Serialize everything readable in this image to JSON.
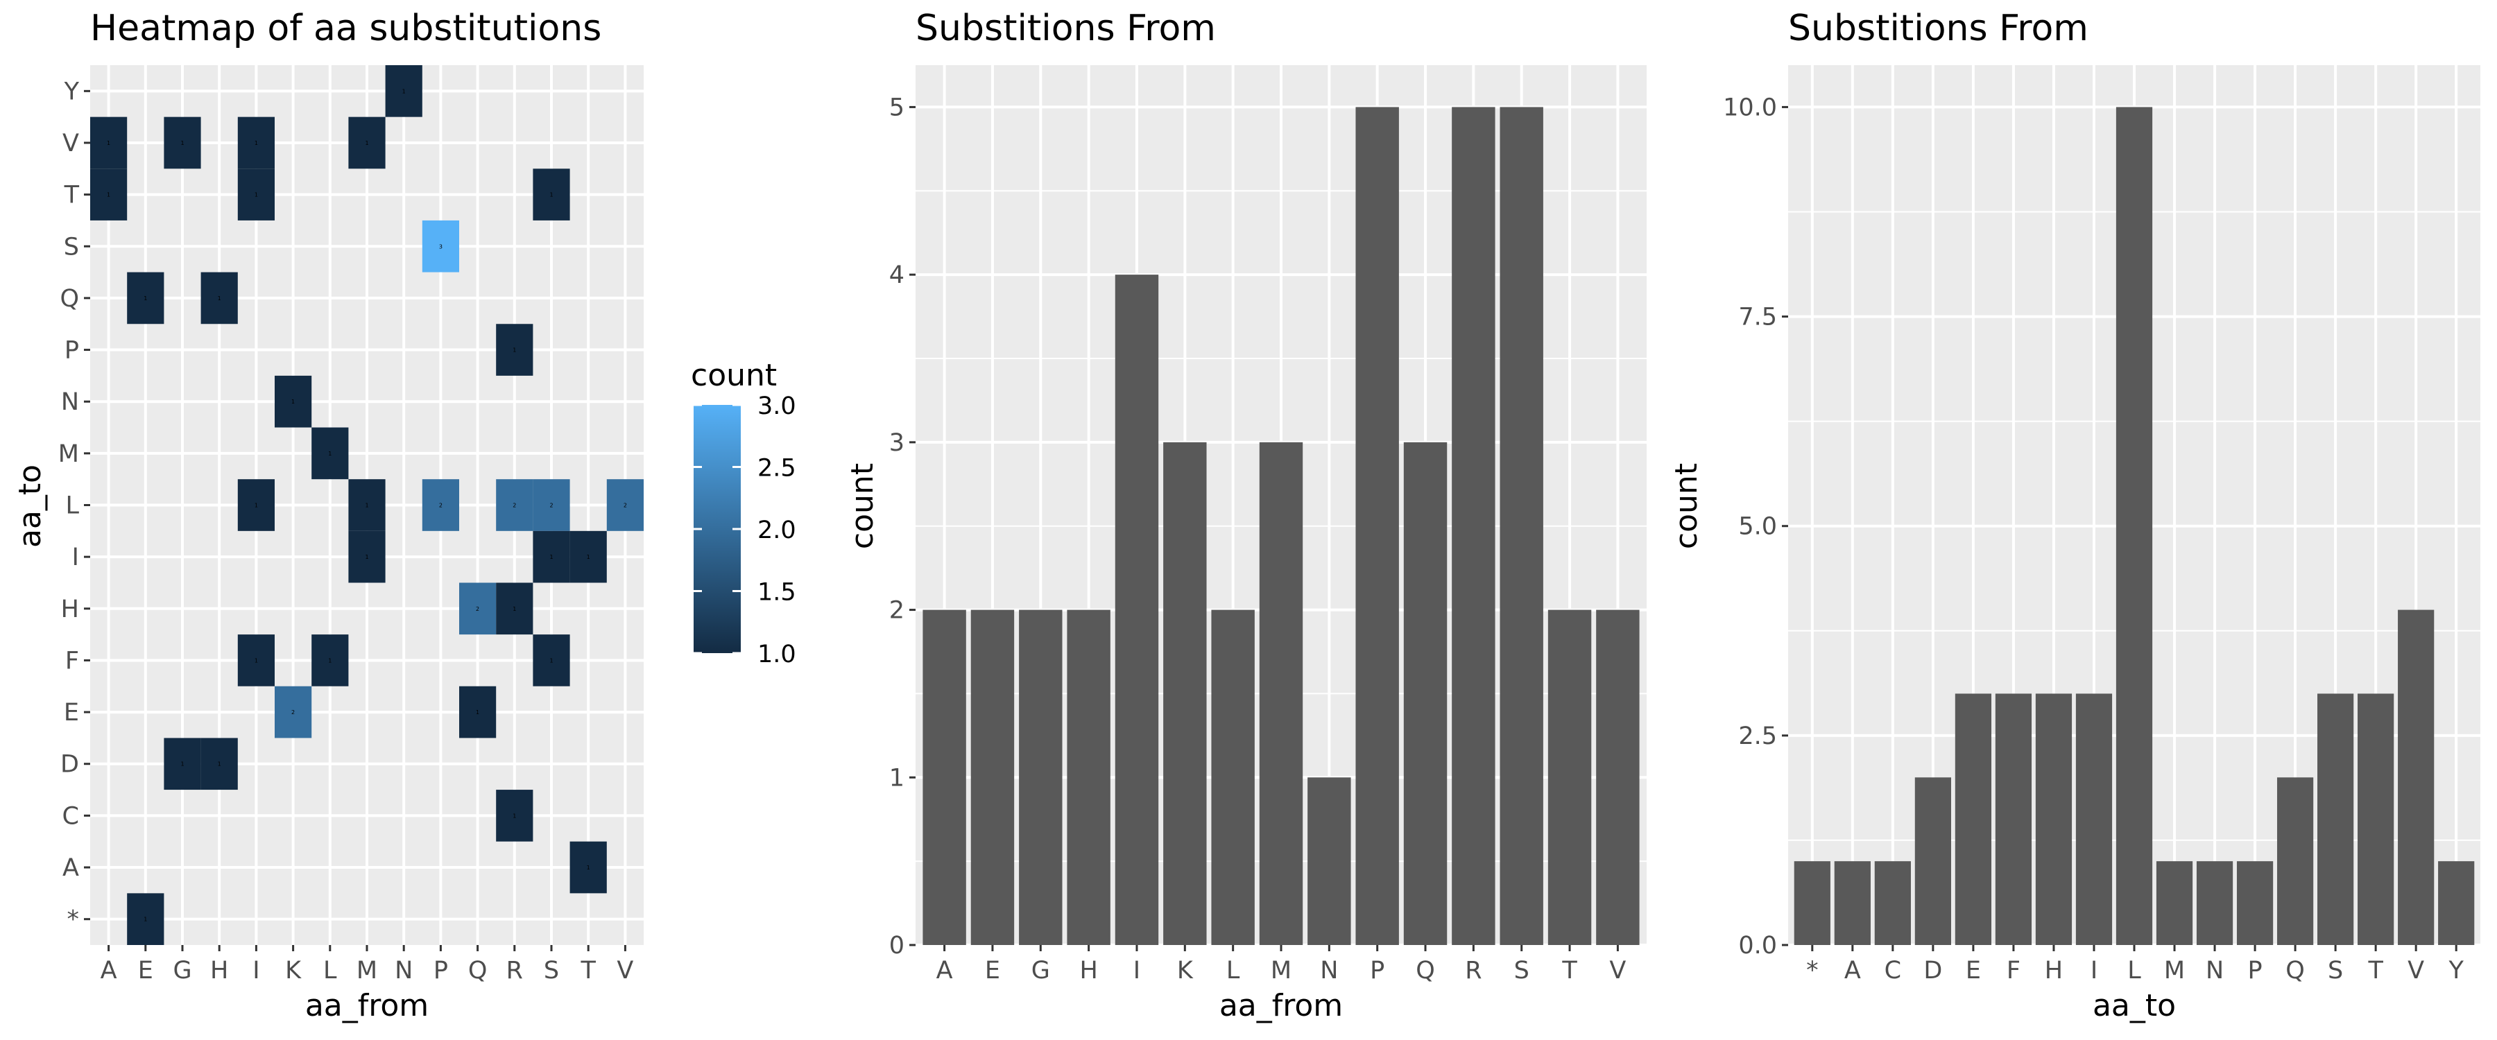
{
  "chart_data": [
    {
      "type": "heatmap",
      "title": "Heatmap of aa substitutions",
      "xlabel": "aa_from",
      "ylabel": "aa_to",
      "x_categories": [
        "A",
        "E",
        "G",
        "H",
        "I",
        "K",
        "L",
        "M",
        "N",
        "P",
        "Q",
        "R",
        "S",
        "T",
        "V"
      ],
      "y_categories": [
        "*",
        "A",
        "C",
        "D",
        "E",
        "F",
        "H",
        "I",
        "L",
        "M",
        "N",
        "P",
        "Q",
        "S",
        "T",
        "V",
        "Y"
      ],
      "cells": [
        {
          "x": "A",
          "y": "V",
          "value": 1
        },
        {
          "x": "A",
          "y": "T",
          "value": 1
        },
        {
          "x": "E",
          "y": "Q",
          "value": 1
        },
        {
          "x": "E",
          "y": "*",
          "value": 1
        },
        {
          "x": "G",
          "y": "V",
          "value": 1
        },
        {
          "x": "G",
          "y": "D",
          "value": 1
        },
        {
          "x": "H",
          "y": "Q",
          "value": 1
        },
        {
          "x": "H",
          "y": "D",
          "value": 1
        },
        {
          "x": "I",
          "y": "V",
          "value": 1
        },
        {
          "x": "I",
          "y": "T",
          "value": 1
        },
        {
          "x": "I",
          "y": "L",
          "value": 1
        },
        {
          "x": "I",
          "y": "F",
          "value": 1
        },
        {
          "x": "K",
          "y": "N",
          "value": 1
        },
        {
          "x": "K",
          "y": "E",
          "value": 2
        },
        {
          "x": "L",
          "y": "M",
          "value": 1
        },
        {
          "x": "L",
          "y": "F",
          "value": 1
        },
        {
          "x": "M",
          "y": "V",
          "value": 1
        },
        {
          "x": "M",
          "y": "L",
          "value": 1
        },
        {
          "x": "M",
          "y": "I",
          "value": 1
        },
        {
          "x": "N",
          "y": "Y",
          "value": 1
        },
        {
          "x": "P",
          "y": "S",
          "value": 3
        },
        {
          "x": "P",
          "y": "L",
          "value": 2
        },
        {
          "x": "Q",
          "y": "H",
          "value": 2
        },
        {
          "x": "Q",
          "y": "E",
          "value": 1
        },
        {
          "x": "R",
          "y": "P",
          "value": 1
        },
        {
          "x": "R",
          "y": "L",
          "value": 2
        },
        {
          "x": "R",
          "y": "H",
          "value": 1
        },
        {
          "x": "R",
          "y": "C",
          "value": 1
        },
        {
          "x": "S",
          "y": "T",
          "value": 1
        },
        {
          "x": "S",
          "y": "L",
          "value": 2
        },
        {
          "x": "S",
          "y": "I",
          "value": 1
        },
        {
          "x": "S",
          "y": "F",
          "value": 1
        },
        {
          "x": "T",
          "y": "I",
          "value": 1
        },
        {
          "x": "T",
          "y": "A",
          "value": 1
        },
        {
          "x": "V",
          "y": "L",
          "value": 2
        }
      ],
      "legend": {
        "title": "count",
        "ticks": [
          "1.0",
          "1.5",
          "2.0",
          "2.5",
          "3.0"
        ],
        "range": [
          1,
          3
        ],
        "low_color": "#132B43",
        "high_color": "#56B1F7",
        "placement": "right"
      },
      "panel_background": "#EBEBEB",
      "grid": true
    },
    {
      "type": "bar",
      "title": "Substitions From",
      "xlabel": "aa_from",
      "ylabel": "count",
      "categories": [
        "A",
        "E",
        "G",
        "H",
        "I",
        "K",
        "L",
        "M",
        "N",
        "P",
        "Q",
        "R",
        "S",
        "T",
        "V"
      ],
      "values": [
        2,
        2,
        2,
        2,
        4,
        3,
        2,
        3,
        1,
        5,
        3,
        5,
        5,
        2,
        2
      ],
      "ylim": [
        0,
        5.25
      ],
      "yticks": [
        "0",
        "1",
        "2",
        "3",
        "4",
        "5"
      ],
      "bar_color": "#595959",
      "panel_background": "#EBEBEB",
      "grid": true
    },
    {
      "type": "bar",
      "title": "Substitions From",
      "xlabel": "aa_to",
      "ylabel": "count",
      "categories": [
        "*",
        "A",
        "C",
        "D",
        "E",
        "F",
        "H",
        "I",
        "L",
        "M",
        "N",
        "P",
        "Q",
        "S",
        "T",
        "V",
        "Y"
      ],
      "values": [
        1,
        1,
        1,
        2,
        3,
        3,
        3,
        3,
        10,
        1,
        1,
        1,
        2,
        3,
        3,
        4,
        1
      ],
      "ylim": [
        0,
        10.5
      ],
      "yticks": [
        "0.0",
        "2.5",
        "5.0",
        "7.5",
        "10.0"
      ],
      "bar_color": "#595959",
      "panel_background": "#EBEBEB",
      "grid": true
    }
  ]
}
